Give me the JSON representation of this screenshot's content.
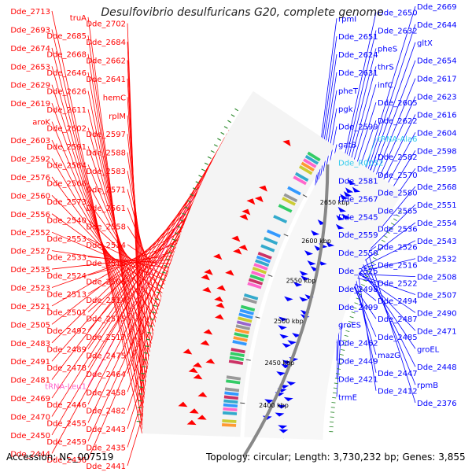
{
  "title": "Desulfovibrio desulfuricans G20, complete genome",
  "footer": {
    "accession": "Accession: NC_007519",
    "summary": "Topology: circular; Length: 3,730,232 bp; Genes: 3,855"
  },
  "colors": {
    "forward_strand": "#ff0000",
    "reverse_strand": "#0000ff",
    "trna": "#ff66cc",
    "ncrna": "#33ccee",
    "backbone": "#888888"
  },
  "ruler_labels": [
    "2650 kbp",
    "2600 kbp",
    "2550 kbp",
    "2500 kbp",
    "2450 kbp",
    "2400 kbp"
  ],
  "left_labels": [
    {
      "text": "Dde_2713",
      "kind": "gene"
    },
    {
      "text": "truA",
      "kind": "gene"
    },
    {
      "text": "Dde_2702",
      "kind": "gene"
    },
    {
      "text": "Dde_2693",
      "kind": "gene"
    },
    {
      "text": "Dde_2685",
      "kind": "gene"
    },
    {
      "text": "Dde_2684",
      "kind": "gene"
    },
    {
      "text": "Dde_2674",
      "kind": "gene"
    },
    {
      "text": "Dde_2668",
      "kind": "gene"
    },
    {
      "text": "Dde_2662",
      "kind": "gene"
    },
    {
      "text": "Dde_2653",
      "kind": "gene"
    },
    {
      "text": "Dde_2646",
      "kind": "gene"
    },
    {
      "text": "Dde_2641",
      "kind": "gene"
    },
    {
      "text": "Dde_2629",
      "kind": "gene"
    },
    {
      "text": "Dde_2626",
      "kind": "gene"
    },
    {
      "text": "hemC",
      "kind": "gene"
    },
    {
      "text": "Dde_2619",
      "kind": "gene"
    },
    {
      "text": "Dde_2611",
      "kind": "gene"
    },
    {
      "text": "rplM",
      "kind": "gene"
    },
    {
      "text": "aroK",
      "kind": "gene"
    },
    {
      "text": "Dde_2602",
      "kind": "gene"
    },
    {
      "text": "Dde_2597",
      "kind": "gene"
    },
    {
      "text": "Dde_2603",
      "kind": "gene"
    },
    {
      "text": "Dde_2591",
      "kind": "gene"
    },
    {
      "text": "Dde_2588",
      "kind": "gene"
    },
    {
      "text": "Dde_2592",
      "kind": "gene"
    },
    {
      "text": "Dde_2584",
      "kind": "gene"
    },
    {
      "text": "Dde_2583",
      "kind": "gene"
    },
    {
      "text": "Dde_2576",
      "kind": "gene"
    },
    {
      "text": "Dde_2566",
      "kind": "gene"
    },
    {
      "text": "Dde_2571",
      "kind": "gene"
    },
    {
      "text": "Dde_2560",
      "kind": "gene"
    },
    {
      "text": "Dde_2573",
      "kind": "gene"
    },
    {
      "text": "Dde_2561",
      "kind": "gene"
    },
    {
      "text": "Dde_2556",
      "kind": "gene"
    },
    {
      "text": "Dde_2540",
      "kind": "gene"
    },
    {
      "text": "Dde_2558",
      "kind": "gene"
    },
    {
      "text": "Dde_2552",
      "kind": "gene"
    },
    {
      "text": "Dde_2553",
      "kind": "gene"
    },
    {
      "text": "Dde_2534",
      "kind": "gene"
    },
    {
      "text": "Dde_2527",
      "kind": "gene"
    },
    {
      "text": "Dde_2533",
      "kind": "gene"
    },
    {
      "text": "Dde_2518",
      "kind": "gene"
    },
    {
      "text": "Dde_2535",
      "kind": "gene"
    },
    {
      "text": "Dde_2524",
      "kind": "gene"
    },
    {
      "text": "Dde_2506",
      "kind": "gene"
    },
    {
      "text": "Dde_2523",
      "kind": "gene"
    },
    {
      "text": "Dde_2513",
      "kind": "gene"
    },
    {
      "text": "Dde_2514",
      "kind": "gene"
    },
    {
      "text": "Dde_2521",
      "kind": "gene"
    },
    {
      "text": "Dde_2501",
      "kind": "gene"
    },
    {
      "text": "Dde_2515",
      "kind": "gene"
    },
    {
      "text": "Dde_2505",
      "kind": "gene"
    },
    {
      "text": "Dde_2492",
      "kind": "gene"
    },
    {
      "text": "Dde_2517",
      "kind": "gene"
    },
    {
      "text": "Dde_2483",
      "kind": "gene"
    },
    {
      "text": "Dde_2489",
      "kind": "gene"
    },
    {
      "text": "Dde_2475",
      "kind": "gene"
    },
    {
      "text": "Dde_2491",
      "kind": "gene"
    },
    {
      "text": "Dde_2478",
      "kind": "gene"
    },
    {
      "text": "Dde_2464",
      "kind": "gene"
    },
    {
      "text": "Dde_2481",
      "kind": "gene"
    },
    {
      "text": "tRNA-Leu1",
      "kind": "trna"
    },
    {
      "text": "Dde_2458",
      "kind": "gene"
    },
    {
      "text": "Dde_2469",
      "kind": "gene"
    },
    {
      "text": "Dde_2446",
      "kind": "gene"
    },
    {
      "text": "Dde_2482",
      "kind": "gene"
    },
    {
      "text": "Dde_2470",
      "kind": "gene"
    },
    {
      "text": "Dde_2455",
      "kind": "gene"
    },
    {
      "text": "Dde_2443",
      "kind": "gene"
    },
    {
      "text": "Dde_2450",
      "kind": "gene"
    },
    {
      "text": "Dde_2459",
      "kind": "gene"
    },
    {
      "text": "Dde_2435",
      "kind": "gene"
    },
    {
      "text": "Dde_2444",
      "kind": "gene"
    },
    {
      "text": "Dde_2436",
      "kind": "gene"
    },
    {
      "text": "Dde_2441",
      "kind": "gene"
    }
  ],
  "right_labels": [
    {
      "text": "Dde_2669",
      "kind": "gene"
    },
    {
      "text": "Dde_2650",
      "kind": "gene"
    },
    {
      "text": "rpmI",
      "kind": "gene"
    },
    {
      "text": "Dde_2644",
      "kind": "gene"
    },
    {
      "text": "Dde_2632",
      "kind": "gene"
    },
    {
      "text": "Dde_2651",
      "kind": "gene"
    },
    {
      "text": "gltX",
      "kind": "gene"
    },
    {
      "text": "pheS",
      "kind": "gene"
    },
    {
      "text": "Dde_2624",
      "kind": "gene"
    },
    {
      "text": "Dde_2654",
      "kind": "gene"
    },
    {
      "text": "thrS",
      "kind": "gene"
    },
    {
      "text": "Dde_2631",
      "kind": "gene"
    },
    {
      "text": "Dde_2617",
      "kind": "gene"
    },
    {
      "text": "infC",
      "kind": "gene"
    },
    {
      "text": "pheT",
      "kind": "gene"
    },
    {
      "text": "Dde_2623",
      "kind": "gene"
    },
    {
      "text": "Dde_2605",
      "kind": "gene"
    },
    {
      "text": "pgk",
      "kind": "gene"
    },
    {
      "text": "Dde_2616",
      "kind": "gene"
    },
    {
      "text": "Dde_2622",
      "kind": "gene"
    },
    {
      "text": "Dde_2599",
      "kind": "gene"
    },
    {
      "text": "Dde_2604",
      "kind": "gene"
    },
    {
      "text": "tRNA-Ala6",
      "kind": "ncrna"
    },
    {
      "text": "gatB",
      "kind": "gene"
    },
    {
      "text": "Dde_2598",
      "kind": "gene"
    },
    {
      "text": "Dde_2582",
      "kind": "gene"
    },
    {
      "text": "Dde_R0052",
      "kind": "ncrna"
    },
    {
      "text": "Dde_2595",
      "kind": "gene"
    },
    {
      "text": "Dde_2570",
      "kind": "gene"
    },
    {
      "text": "Dde_2581",
      "kind": "gene"
    },
    {
      "text": "Dde_2568",
      "kind": "gene"
    },
    {
      "text": "Dde_2580",
      "kind": "gene"
    },
    {
      "text": "Dde_2567",
      "kind": "gene"
    },
    {
      "text": "Dde_2551",
      "kind": "gene"
    },
    {
      "text": "Dde_2565",
      "kind": "gene"
    },
    {
      "text": "Dde_2545",
      "kind": "gene"
    },
    {
      "text": "Dde_2554",
      "kind": "gene"
    },
    {
      "text": "Dde_2536",
      "kind": "gene"
    },
    {
      "text": "Dde_2559",
      "kind": "gene"
    },
    {
      "text": "Dde_2543",
      "kind": "gene"
    },
    {
      "text": "Dde_2526",
      "kind": "gene"
    },
    {
      "text": "Dde_2550",
      "kind": "gene"
    },
    {
      "text": "Dde_2532",
      "kind": "gene"
    },
    {
      "text": "Dde_2516",
      "kind": "gene"
    },
    {
      "text": "Dde_2525",
      "kind": "gene"
    },
    {
      "text": "Dde_2508",
      "kind": "gene"
    },
    {
      "text": "Dde_2522",
      "kind": "gene"
    },
    {
      "text": "Dde_2498",
      "kind": "gene"
    },
    {
      "text": "Dde_2507",
      "kind": "gene"
    },
    {
      "text": "Dde_2494",
      "kind": "gene"
    },
    {
      "text": "Dde_2499",
      "kind": "gene"
    },
    {
      "text": "Dde_2490",
      "kind": "gene"
    },
    {
      "text": "Dde_2487",
      "kind": "gene"
    },
    {
      "text": "groES",
      "kind": "gene"
    },
    {
      "text": "Dde_2471",
      "kind": "gene"
    },
    {
      "text": "Dde_2485",
      "kind": "gene"
    },
    {
      "text": "Dde_2462",
      "kind": "gene"
    },
    {
      "text": "groEL",
      "kind": "gene"
    },
    {
      "text": "mazG",
      "kind": "gene"
    },
    {
      "text": "Dde_2449",
      "kind": "gene"
    },
    {
      "text": "Dde_2448",
      "kind": "gene"
    },
    {
      "text": "Dde_2447",
      "kind": "gene"
    },
    {
      "text": "Dde_2421",
      "kind": "gene"
    },
    {
      "text": "rpmB",
      "kind": "gene"
    },
    {
      "text": "Dde_2412",
      "kind": "gene"
    },
    {
      "text": "trmE",
      "kind": "gene"
    },
    {
      "text": "Dde_2376",
      "kind": "gene"
    }
  ]
}
